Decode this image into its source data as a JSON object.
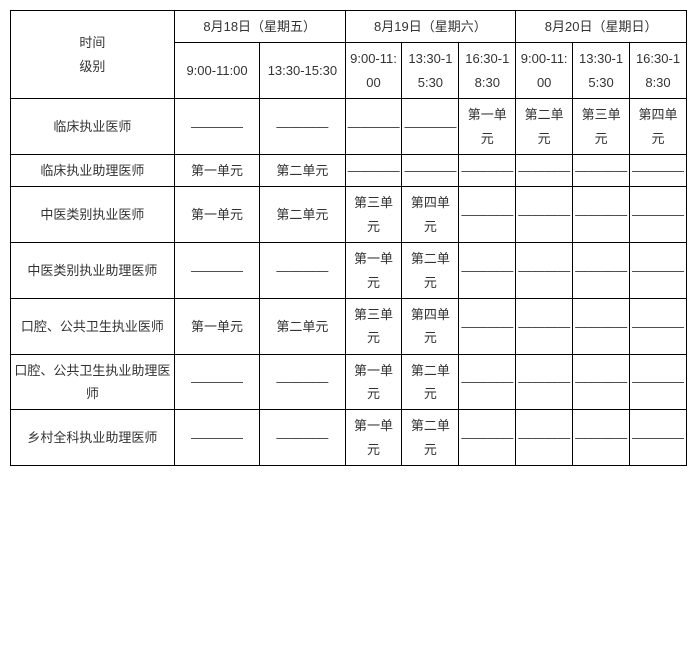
{
  "table": {
    "header": {
      "row_label_top": "时间",
      "row_label_bottom": "级别",
      "days": [
        {
          "date": "8月18日（星期五）",
          "slots": [
            "9:00-11:00",
            "13:30-15:30"
          ]
        },
        {
          "date": "8月19日（星期六）",
          "slots": [
            "9:00-11:00",
            "13:30-15:30",
            "16:30-18:30"
          ]
        },
        {
          "date": "8月20日（星期日）",
          "slots": [
            "9:00-11:00",
            "13:30-15:30",
            "16:30-18:30"
          ]
        }
      ]
    },
    "rows": [
      {
        "label": "临床执业医师",
        "cells": [
          "",
          "",
          "",
          "",
          "第一单元",
          "第二单元",
          "第三单元",
          "第四单元"
        ]
      },
      {
        "label": "临床执业助理医师",
        "cells": [
          "第一单元",
          "第二单元",
          "",
          "",
          "",
          "",
          "",
          ""
        ]
      },
      {
        "label": "中医类别执业医师",
        "cells": [
          "第一单元",
          "第二单元",
          "第三单元",
          "第四单元",
          "",
          "",
          "",
          ""
        ]
      },
      {
        "label": "中医类别执业助理医师",
        "cells": [
          "",
          "",
          "第一单元",
          "第二单元",
          "",
          "",
          "",
          ""
        ]
      },
      {
        "label": "口腔、公共卫生执业医师",
        "cells": [
          "第一单元",
          "第二单元",
          "第三单元",
          "第四单元",
          "",
          "",
          "",
          ""
        ]
      },
      {
        "label": "口腔、公共卫生执业助理医师",
        "cells": [
          "",
          "",
          "第一单元",
          "第二单元",
          "",
          "",
          "",
          ""
        ]
      },
      {
        "label": "乡村全科执业助理医师",
        "cells": [
          "",
          "",
          "第一单元",
          "第二单元",
          "",
          "",
          "",
          ""
        ]
      }
    ],
    "style": {
      "border_color": "#000000",
      "text_color": "#333333",
      "font_size": 13,
      "background_color": "#ffffff",
      "blank_glyph": "————"
    }
  }
}
